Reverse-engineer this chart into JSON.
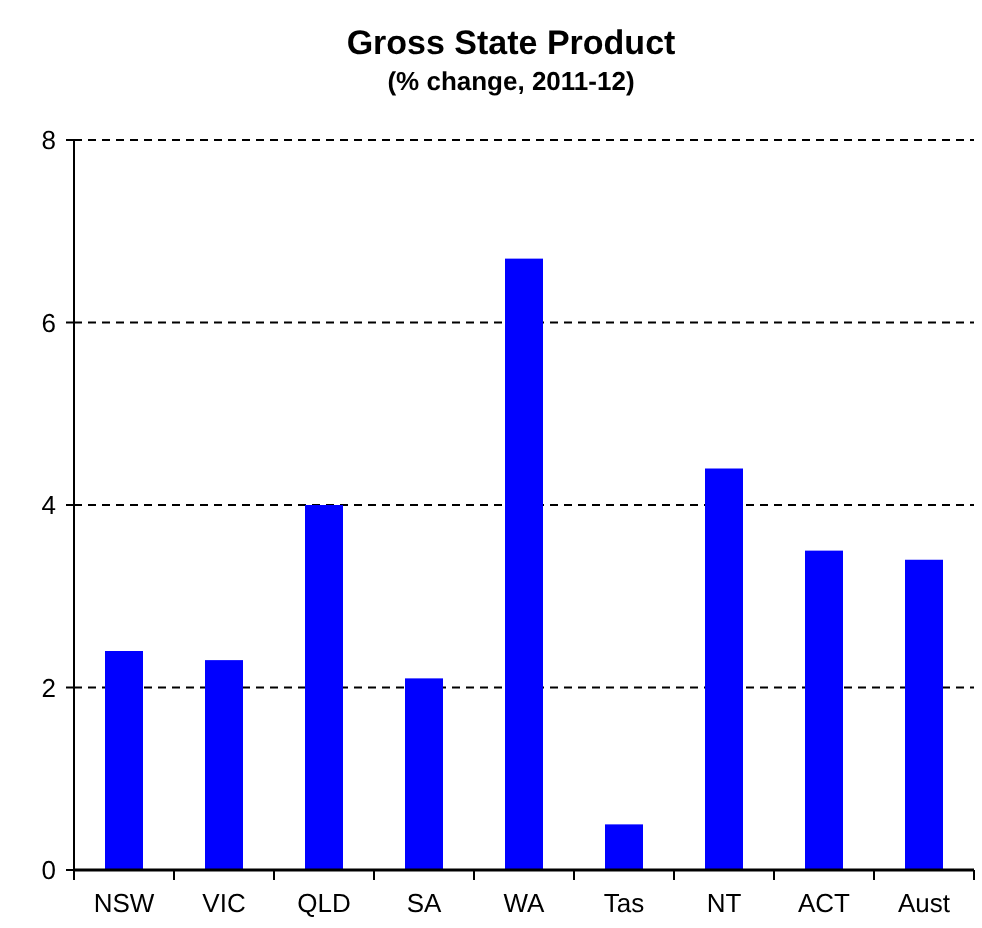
{
  "chart_data": {
    "type": "bar",
    "title": "Gross State Product",
    "subtitle": "(% change, 2011-12)",
    "categories": [
      "NSW",
      "VIC",
      "QLD",
      "SA",
      "WA",
      "Tas",
      "NT",
      "ACT",
      "Aust"
    ],
    "values": [
      2.4,
      2.3,
      4.0,
      2.1,
      6.7,
      0.5,
      4.4,
      3.5,
      3.4
    ],
    "color": "#0000ff",
    "ylim": [
      0,
      8
    ],
    "yticks": [
      0,
      2,
      4,
      6,
      8
    ],
    "grid": "y"
  }
}
